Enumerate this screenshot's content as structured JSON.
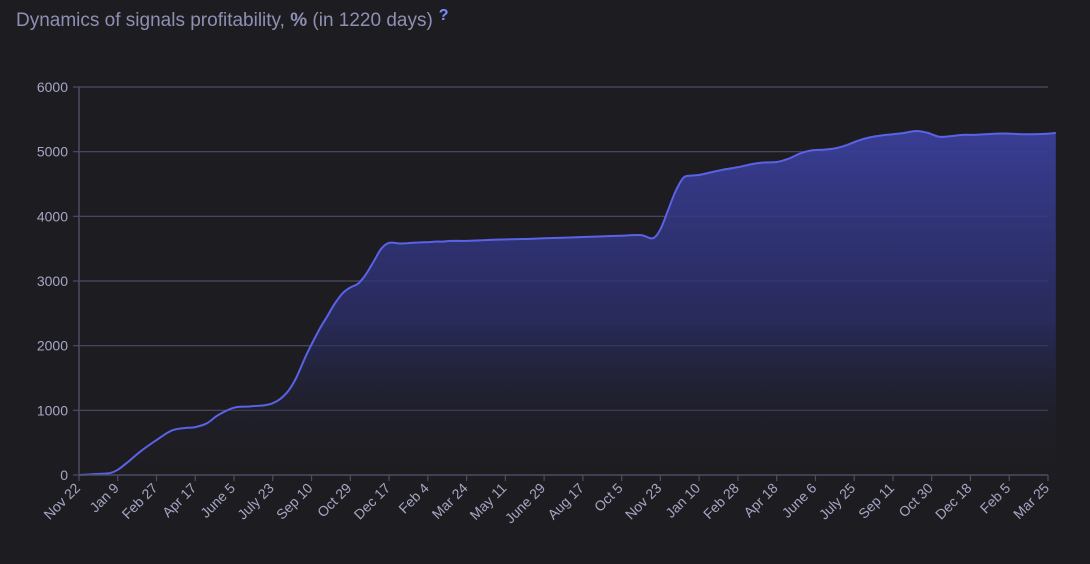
{
  "header": {
    "title_prefix": "Dynamics of signals profitability,",
    "title_unit": "%",
    "title_suffix": "(in 1220 days)",
    "help_label": "?"
  },
  "colors": {
    "background": "#1d1d21",
    "line": "#5a62e6",
    "grid": "#4c4c66",
    "text": "#8f8fb4",
    "accent": "#7e8bff"
  },
  "chart_data": {
    "type": "area",
    "title": "Dynamics of signals profitability, % (in 1220 days)",
    "xlabel": "",
    "ylabel": "",
    "ylim": [
      0,
      6000
    ],
    "yticks": [
      0,
      1000,
      2000,
      3000,
      4000,
      5000,
      6000
    ],
    "xtick_labels": [
      "Nov 22",
      "Jan 9",
      "Feb 27",
      "Apr 17",
      "June 5",
      "July 23",
      "Sep 10",
      "Oct 29",
      "Dec 17",
      "Feb 4",
      "Mar 24",
      "May 11",
      "June 29",
      "Aug 17",
      "Oct 5",
      "Nov 23",
      "Jan 10",
      "Feb 28",
      "Apr 18",
      "June 6",
      "July 25",
      "Sep 11",
      "Oct 30",
      "Dec 18",
      "Feb 5",
      "Mar 25"
    ],
    "grid": true,
    "legend": "none",
    "series": [
      {
        "x": [
          0,
          0.3,
          0.6,
          0.8,
          1.0,
          1.3,
          1.6,
          2.0,
          2.4,
          2.8,
          3.0,
          3.3,
          3.6,
          4.0,
          4.4,
          4.8,
          5.0,
          5.2,
          5.4,
          5.6,
          5.9,
          6.2,
          6.4,
          6.6,
          6.8,
          7.0,
          7.2,
          7.4,
          7.6,
          7.8,
          8.0,
          8.3,
          8.6,
          8.9,
          9.0,
          9.2,
          9.4,
          9.6,
          9.8,
          10.0,
          10.4,
          10.8,
          11.5,
          12.0,
          12.5,
          13.0,
          13.5,
          14.0,
          14.5,
          14.8,
          15.0,
          15.2,
          15.4,
          15.6,
          15.8,
          16.0,
          16.3,
          16.6,
          17.0,
          17.3,
          17.6,
          18.0,
          18.3,
          18.6,
          18.9,
          19.2,
          19.5,
          19.8,
          20.1,
          20.4,
          20.7,
          21.0,
          21.3,
          21.6,
          21.9,
          22.2,
          22.5,
          22.8,
          23.1,
          23.4,
          23.7,
          24.0,
          24.3,
          24.6,
          24.9,
          25.2
        ],
        "y": [
          0,
          10,
          20,
          30,
          80,
          220,
          370,
          540,
          690,
          730,
          740,
          800,
          930,
          1040,
          1060,
          1080,
          1110,
          1180,
          1300,
          1500,
          1900,
          2250,
          2450,
          2650,
          2810,
          2900,
          2960,
          3100,
          3300,
          3500,
          3590,
          3580,
          3590,
          3600,
          3600,
          3610,
          3610,
          3620,
          3620,
          3620,
          3630,
          3640,
          3650,
          3660,
          3670,
          3680,
          3690,
          3700,
          3710,
          3660,
          3800,
          4100,
          4400,
          4600,
          4630,
          4640,
          4680,
          4720,
          4760,
          4800,
          4830,
          4840,
          4890,
          4970,
          5020,
          5030,
          5050,
          5100,
          5170,
          5220,
          5250,
          5270,
          5290,
          5320,
          5290,
          5230,
          5240,
          5260,
          5260,
          5270,
          5280,
          5280,
          5270,
          5270,
          5275,
          5290
        ]
      }
    ]
  }
}
